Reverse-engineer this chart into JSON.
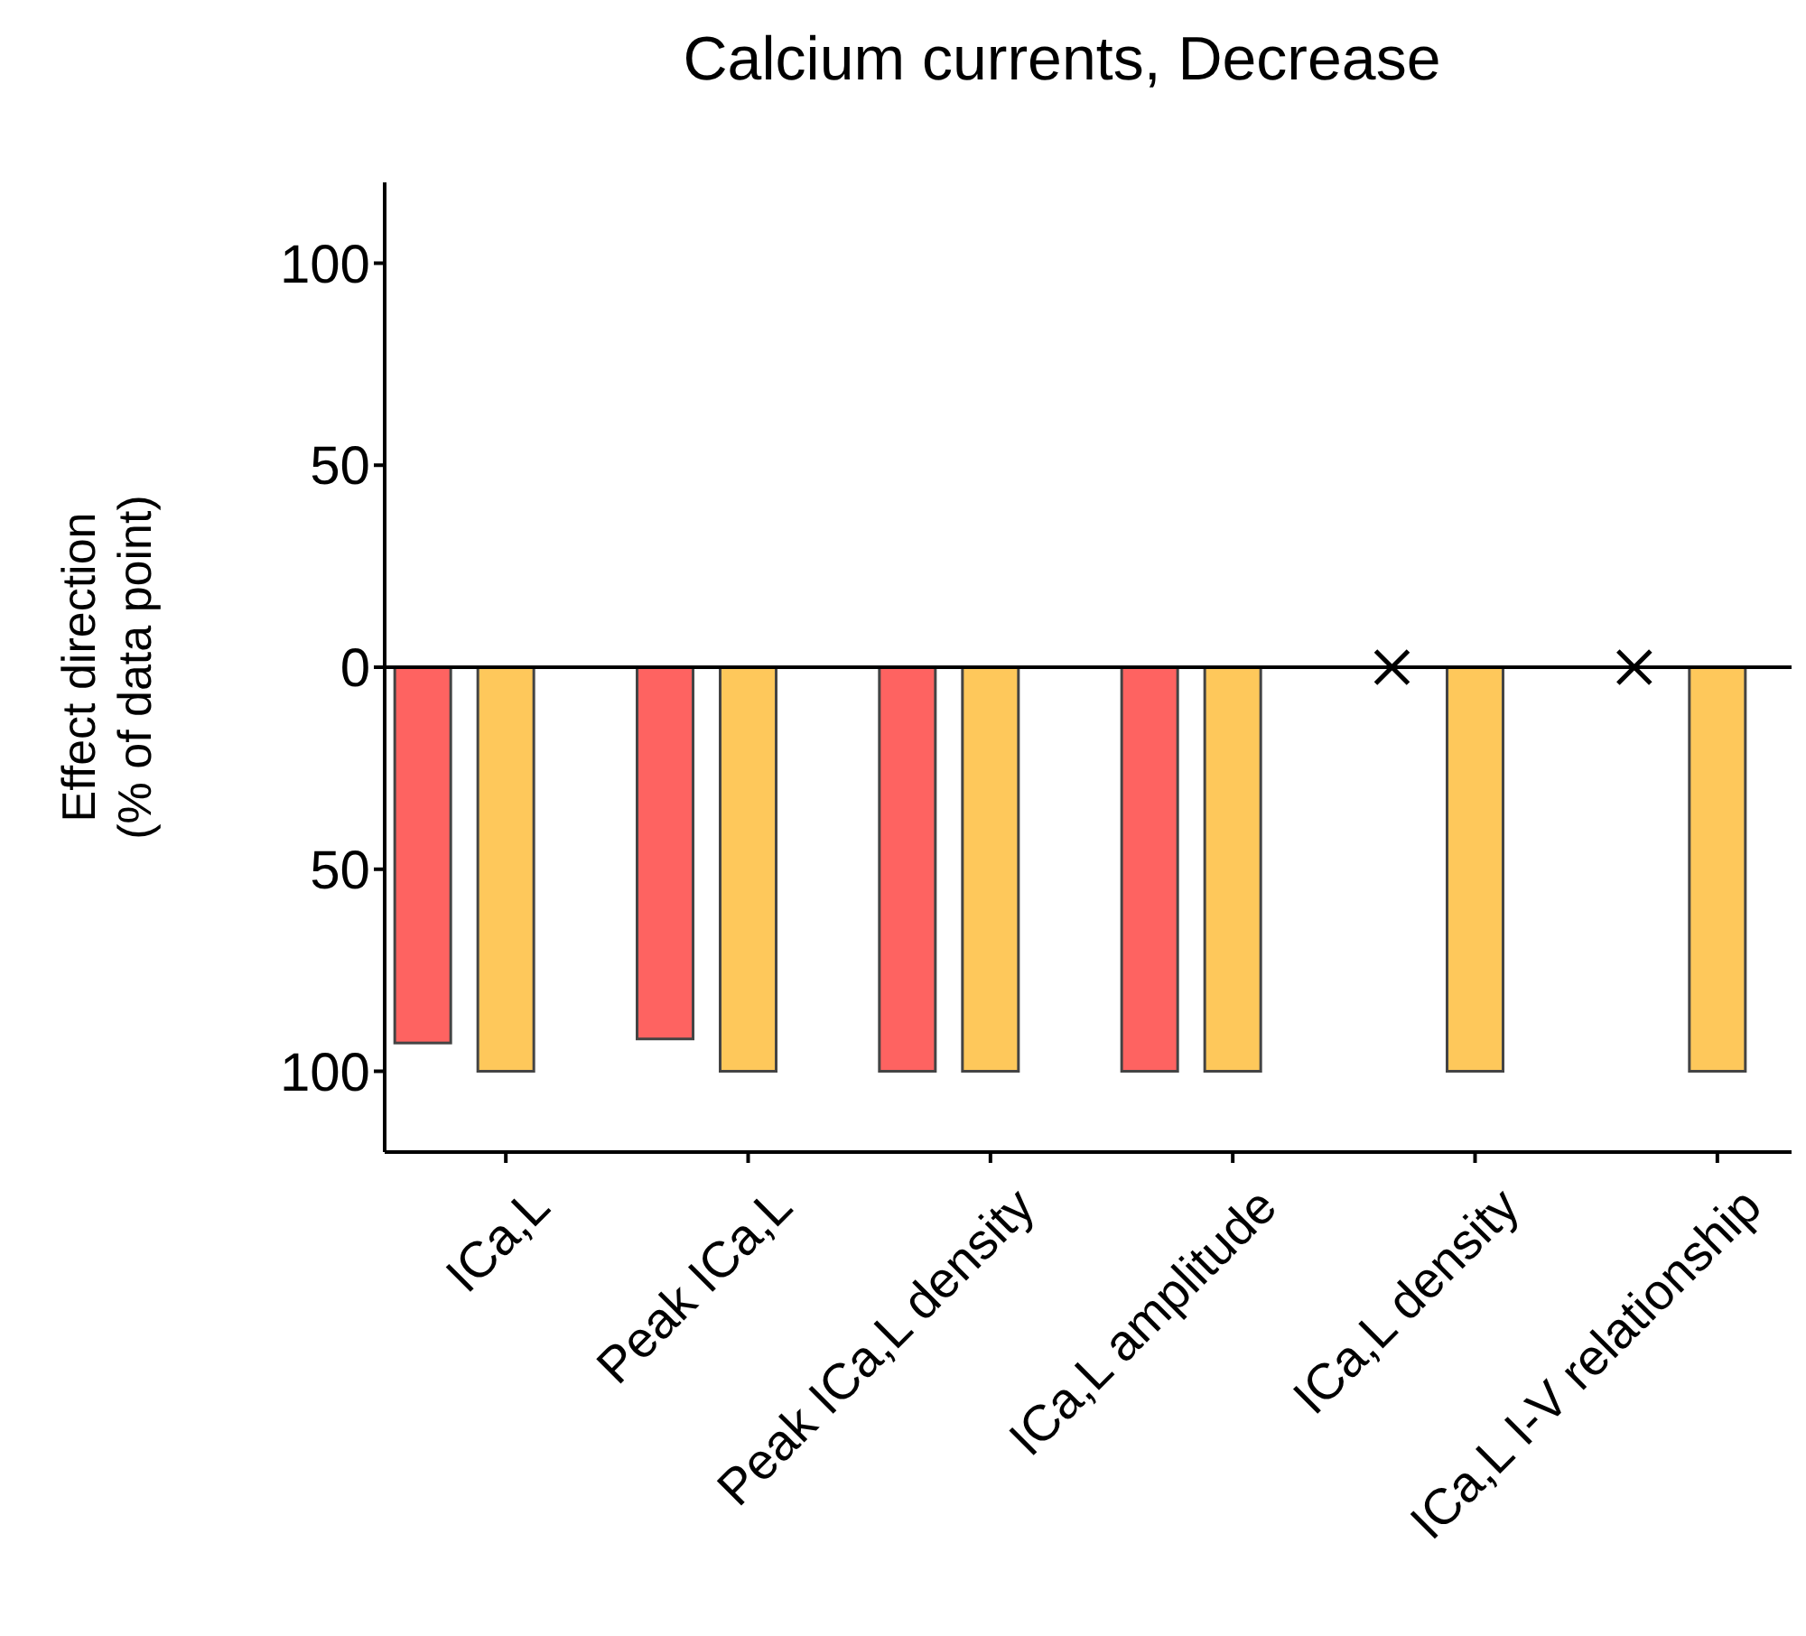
{
  "chart_data": {
    "type": "bar",
    "title": "Calcium currents, Decrease",
    "ylabel": "Effect direction\n(% of data point)",
    "categories": [
      "ICa,L",
      "Peak ICa,L",
      "Peak ICa,L density",
      "ICa,L amplitude",
      "ICa,L density",
      "ICa,L I-V relationship"
    ],
    "series": [
      {
        "color": "#fe6361",
        "values": [
          -93,
          -92,
          -100,
          -100,
          null,
          null
        ]
      },
      {
        "color": "#fec85b",
        "values": [
          -100,
          -100,
          -100,
          -100,
          -100,
          -100
        ]
      },
      {
        "type": "scatter",
        "color": "#000000",
        "x": [
          "ICa,L density",
          "ICa,L I-V relationship"
        ],
        "values": [
          0,
          0
        ]
      }
    ],
    "marker": "cross",
    "ylim": [
      -120,
      120
    ],
    "yticks": [
      {
        "value": -100,
        "label": "100"
      },
      {
        "value": -50,
        "label": "50"
      },
      0,
      50,
      100
    ]
  }
}
